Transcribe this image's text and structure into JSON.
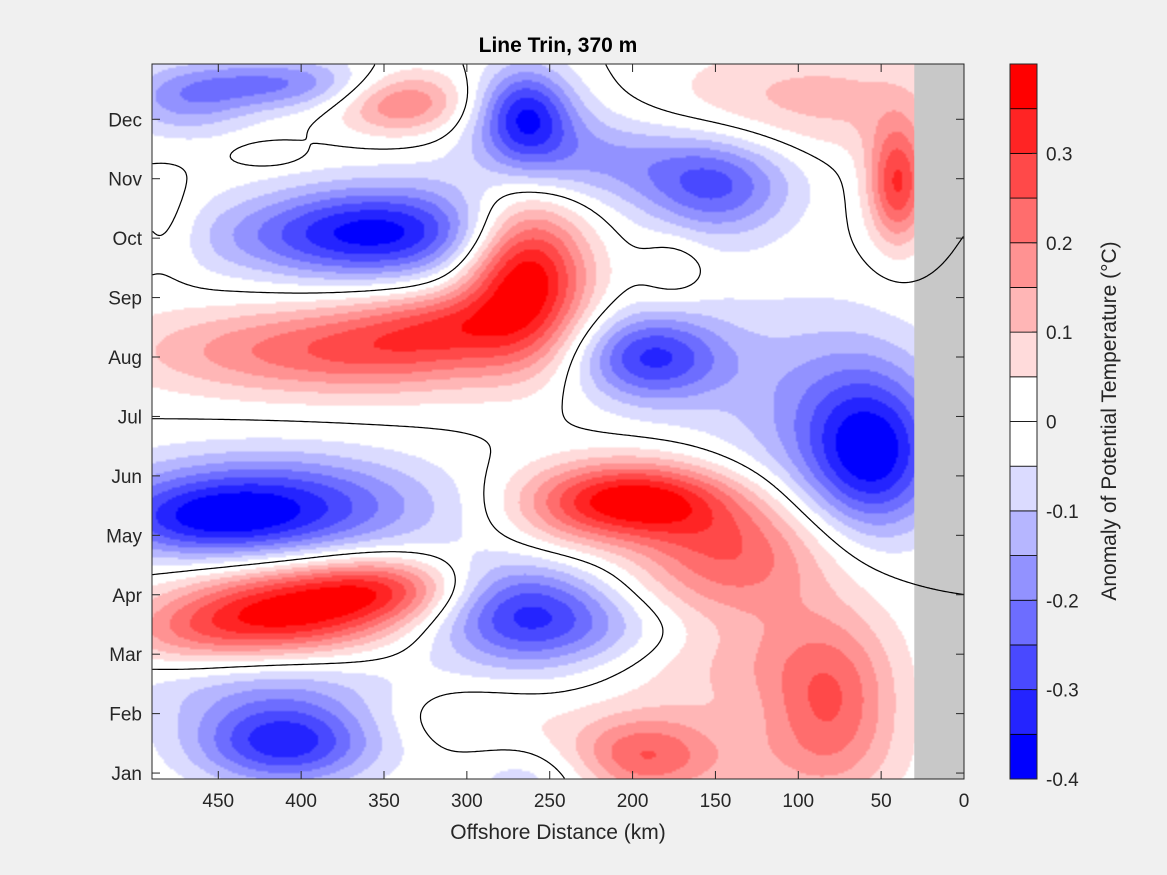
{
  "chart_data": {
    "type": "heatmap",
    "title": "Line Trin, 370 m",
    "xlabel": "Offshore Distance (km)",
    "ylabel": "",
    "colorbar_label": "Anomaly of Potential Temperature (°C)",
    "x_direction": "reversed",
    "xlim": [
      0,
      490
    ],
    "x_ticks": [
      450,
      400,
      350,
      300,
      250,
      200,
      150,
      100,
      50,
      0
    ],
    "ylim": [
      0.9,
      12.93
    ],
    "y_ticks": [
      {
        "value": 1,
        "label": "Jan"
      },
      {
        "value": 2,
        "label": "Feb"
      },
      {
        "value": 3,
        "label": "Mar"
      },
      {
        "value": 4,
        "label": "Apr"
      },
      {
        "value": 5,
        "label": "May"
      },
      {
        "value": 6,
        "label": "Jun"
      },
      {
        "value": 7,
        "label": "Jul"
      },
      {
        "value": 8,
        "label": "Aug"
      },
      {
        "value": 9,
        "label": "Sep"
      },
      {
        "value": 10,
        "label": "Oct"
      },
      {
        "value": 11,
        "label": "Nov"
      },
      {
        "value": 12,
        "label": "Dec"
      }
    ],
    "clim": [
      -0.4,
      0.4
    ],
    "colorbar_ticks": [
      {
        "value": 0.3,
        "label": "0.3"
      },
      {
        "value": 0.2,
        "label": "0.2"
      },
      {
        "value": 0.1,
        "label": "0.1"
      },
      {
        "value": 0,
        "label": "0"
      },
      {
        "value": -0.1,
        "label": "-0.1"
      },
      {
        "value": -0.2,
        "label": "-0.2"
      },
      {
        "value": -0.3,
        "label": "-0.3"
      },
      {
        "value": -0.4,
        "label": "-0.4"
      }
    ],
    "colorbar_colors": [
      "#0000ff",
      "#2424ff",
      "#4949ff",
      "#6d6dff",
      "#9292ff",
      "#b6b6ff",
      "#dbdbff",
      "#ffffff",
      "#ffffff",
      "#ffdbdb",
      "#ffb6b6",
      "#ff9292",
      "#ff6d6d",
      "#ff4949",
      "#ff2424",
      "#ff0000"
    ],
    "no_data_color": "#c8c8c8",
    "no_data_x_range": [
      0,
      30
    ],
    "grid": false,
    "features": [
      {
        "x": 410,
        "y": 1.5,
        "value": -0.33,
        "rx": 55,
        "ry": 0.7
      },
      {
        "x": 420,
        "y": 2.5,
        "value": -0.12,
        "rx": 90,
        "ry": 0.7
      },
      {
        "x": 300,
        "y": 2.0,
        "value": 0.06,
        "rx": 60,
        "ry": 0.6
      },
      {
        "x": 195,
        "y": 1.3,
        "value": 0.22,
        "rx": 45,
        "ry": 0.7
      },
      {
        "x": 260,
        "y": 0.9,
        "value": -0.08,
        "rx": 40,
        "ry": 0.5
      },
      {
        "x": 120,
        "y": 1.1,
        "value": 0.06,
        "rx": 80,
        "ry": 0.8
      },
      {
        "x": 80,
        "y": 2.2,
        "value": 0.22,
        "rx": 40,
        "ry": 1.4
      },
      {
        "x": 140,
        "y": 3.3,
        "value": 0.13,
        "rx": 70,
        "ry": 1.4
      },
      {
        "x": 410,
        "y": 3.7,
        "value": 0.36,
        "rx": 65,
        "ry": 0.75
      },
      {
        "x": 350,
        "y": 4.1,
        "value": 0.24,
        "rx": 50,
        "ry": 0.55
      },
      {
        "x": 470,
        "y": 3.3,
        "value": 0.12,
        "rx": 50,
        "ry": 0.6
      },
      {
        "x": 265,
        "y": 3.7,
        "value": -0.3,
        "rx": 55,
        "ry": 0.9
      },
      {
        "x": 200,
        "y": 3.4,
        "value": -0.08,
        "rx": 70,
        "ry": 0.6
      },
      {
        "x": 420,
        "y": 5.5,
        "value": -0.32,
        "rx": 95,
        "ry": 0.85
      },
      {
        "x": 460,
        "y": 5.2,
        "value": -0.15,
        "rx": 60,
        "ry": 0.6
      },
      {
        "x": 200,
        "y": 5.6,
        "value": 0.38,
        "rx": 60,
        "ry": 0.65
      },
      {
        "x": 140,
        "y": 4.8,
        "value": 0.2,
        "rx": 60,
        "ry": 0.9
      },
      {
        "x": 245,
        "y": 5.1,
        "value": 0.05,
        "rx": 40,
        "ry": 0.8
      },
      {
        "x": 55,
        "y": 6.3,
        "value": -0.3,
        "rx": 40,
        "ry": 1.3
      },
      {
        "x": 70,
        "y": 7.0,
        "value": -0.12,
        "rx": 60,
        "ry": 1.6
      },
      {
        "x": 120,
        "y": 7.5,
        "value": -0.06,
        "rx": 70,
        "ry": 1.8
      },
      {
        "x": 190,
        "y": 8.0,
        "value": -0.3,
        "rx": 45,
        "ry": 0.75
      },
      {
        "x": 390,
        "y": 8.1,
        "value": 0.22,
        "rx": 110,
        "ry": 0.75
      },
      {
        "x": 330,
        "y": 8.4,
        "value": 0.12,
        "rx": 60,
        "ry": 0.8
      },
      {
        "x": 265,
        "y": 9.4,
        "value": 0.42,
        "rx": 38,
        "ry": 1.3
      },
      {
        "x": 310,
        "y": 8.6,
        "value": 0.08,
        "rx": 40,
        "ry": 0.5
      },
      {
        "x": 175,
        "y": 9.5,
        "value": 0.06,
        "rx": 20,
        "ry": 0.6
      },
      {
        "x": 350,
        "y": 10.1,
        "value": -0.34,
        "rx": 75,
        "ry": 0.8
      },
      {
        "x": 420,
        "y": 10.0,
        "value": -0.08,
        "rx": 80,
        "ry": 0.7
      },
      {
        "x": 150,
        "y": 10.8,
        "value": -0.22,
        "rx": 45,
        "ry": 0.8
      },
      {
        "x": 200,
        "y": 11.3,
        "value": -0.12,
        "rx": 90,
        "ry": 0.7
      },
      {
        "x": 265,
        "y": 12.1,
        "value": -0.3,
        "rx": 28,
        "ry": 0.8
      },
      {
        "x": 250,
        "y": 11.6,
        "value": -0.08,
        "rx": 50,
        "ry": 0.9
      },
      {
        "x": 340,
        "y": 12.3,
        "value": 0.22,
        "rx": 40,
        "ry": 0.55
      },
      {
        "x": 410,
        "y": 12.6,
        "value": -0.2,
        "rx": 60,
        "ry": 0.45
      },
      {
        "x": 470,
        "y": 12.3,
        "value": -0.15,
        "rx": 40,
        "ry": 0.6
      },
      {
        "x": 90,
        "y": 12.3,
        "value": 0.12,
        "rx": 90,
        "ry": 1.0
      },
      {
        "x": 40,
        "y": 10.9,
        "value": 0.3,
        "rx": 18,
        "ry": 1.0
      },
      {
        "x": 480,
        "y": 10.2,
        "value": 0.06,
        "rx": 20,
        "ry": 0.8
      },
      {
        "x": 420,
        "y": 11.4,
        "value": 0.06,
        "rx": 20,
        "ry": 0.2
      }
    ]
  }
}
